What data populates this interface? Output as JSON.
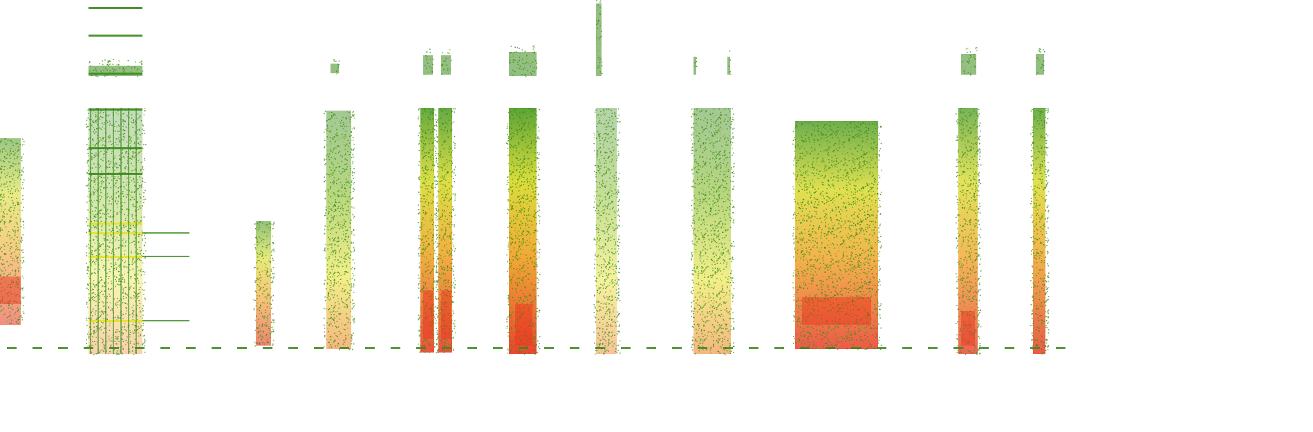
{
  "image": {
    "kind": "spectrogram",
    "background": "#ffffff",
    "palette": {
      "low": "#3a8a1e",
      "mid": "#7cb518",
      "high": "#e8e02a",
      "peak": "#f07a1a",
      "max": "#e8301a"
    }
  }
}
